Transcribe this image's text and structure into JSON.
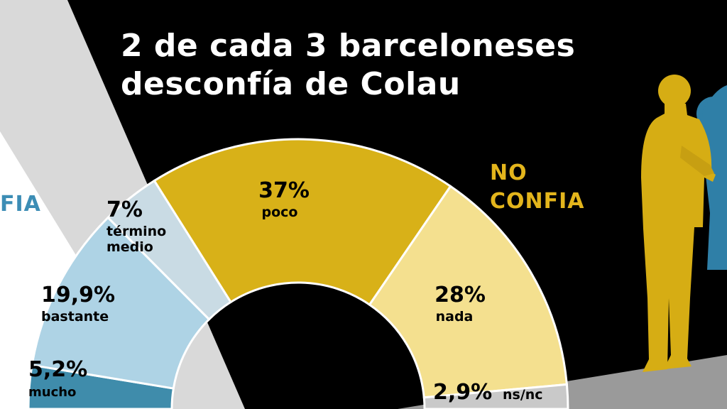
{
  "title": {
    "line1": "2 de cada 3 barceloneses",
    "line2": "desconfía de Colau"
  },
  "side_labels": {
    "no_confia": [
      "NO",
      "CONFIA"
    ],
    "confia_partial": "FIA"
  },
  "colors": {
    "background": "#000000",
    "mucho": "#3f8cab",
    "bastante": "#aed3e5",
    "termino_medio": "#c9dbe4",
    "poco": "#d8b118",
    "nada": "#f4e08f",
    "ns_nc": "#c9c9c9",
    "confia_text": "#3c8db5",
    "no_confia_text": "#e3b51c",
    "silhouette_front": "#d6ad14",
    "silhouette_back": "#2f7fa7"
  },
  "chart_data": {
    "type": "pie",
    "variant": "half-donut",
    "title": "2 de cada 3 barceloneses desconfía de Colau",
    "unit": "%",
    "slices": [
      {
        "label": "mucho",
        "value": 5.2,
        "value_label": "5,2%",
        "group": "confia"
      },
      {
        "label": "bastante",
        "value": 19.9,
        "value_label": "19,9%",
        "group": "confia"
      },
      {
        "label": "término medio",
        "value": 7,
        "value_label": "7%",
        "group": "neutral"
      },
      {
        "label": "poco",
        "value": 37,
        "value_label": "37%",
        "group": "no confia"
      },
      {
        "label": "nada",
        "value": 28,
        "value_label": "28%",
        "group": "no confia"
      },
      {
        "label": "ns/nc",
        "value": 2.9,
        "value_label": "2,9%",
        "group": "other"
      }
    ]
  }
}
